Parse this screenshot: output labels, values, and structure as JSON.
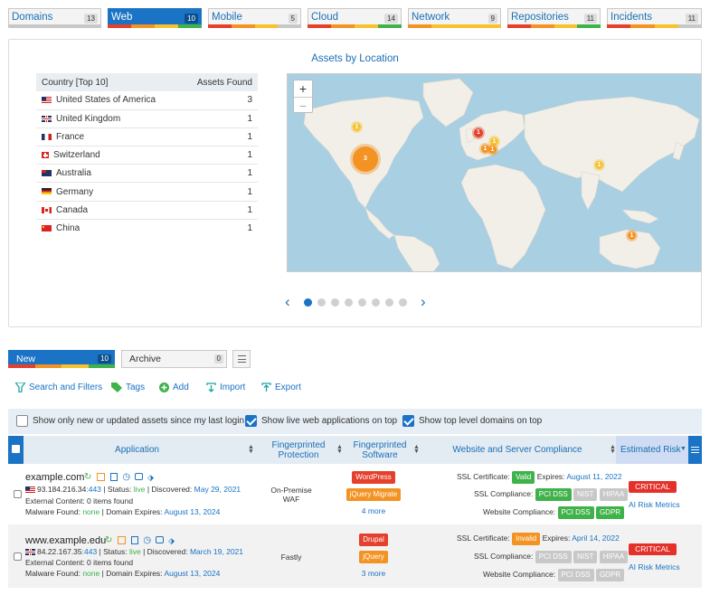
{
  "tabs": [
    {
      "label": "Domains",
      "count": "13",
      "active": false
    },
    {
      "label": "Web",
      "count": "10",
      "active": true
    },
    {
      "label": "Mobile",
      "count": "5",
      "active": false
    },
    {
      "label": "Cloud",
      "count": "14",
      "active": false
    },
    {
      "label": "Network",
      "count": "9",
      "active": false
    },
    {
      "label": "Repositories",
      "count": "11",
      "active": false
    },
    {
      "label": "Incidents",
      "count": "11",
      "active": false
    }
  ],
  "panel": {
    "title": "Assets by Location",
    "country_header": "Country [Top 10]",
    "assets_header": "Assets Found",
    "countries": [
      {
        "name": "United States of America",
        "count": "3",
        "flag": "us"
      },
      {
        "name": "United Kingdom",
        "count": "1",
        "flag": "gb"
      },
      {
        "name": "France",
        "count": "1",
        "flag": "fr"
      },
      {
        "name": "Switzerland",
        "count": "1",
        "flag": "ch"
      },
      {
        "name": "Australia",
        "count": "1",
        "flag": "au"
      },
      {
        "name": "Germany",
        "count": "1",
        "flag": "de"
      },
      {
        "name": "Canada",
        "count": "1",
        "flag": "ca"
      },
      {
        "name": "China",
        "count": "1",
        "flag": "cn"
      }
    ],
    "map": {
      "zoom_in": "+",
      "zoom_out": "−",
      "clusters": [
        "3",
        "1",
        "1",
        "1",
        "1",
        "1",
        "1",
        "1"
      ]
    },
    "pager": {
      "prev": "‹",
      "next": "›",
      "pages": 8,
      "current": 1
    }
  },
  "subtabs": [
    {
      "label": "New",
      "count": "10",
      "active": true
    },
    {
      "label": "Archive",
      "count": "0",
      "active": false
    }
  ],
  "toolbar": {
    "search": "Search and Filters",
    "tags": "Tags",
    "add": "Add",
    "import": "Import",
    "export": "Export",
    "menu_icon": "list-icon"
  },
  "filters": [
    {
      "label": "Show only new or updated assets since my last login",
      "checked": false
    },
    {
      "label": "Show live web applications on top",
      "checked": true
    },
    {
      "label": "Show top level domains on top",
      "checked": true
    }
  ],
  "columns": {
    "application": "Application",
    "protection": "Fingerprinted Protection",
    "software": "Fingerprinted Software",
    "compliance": "Website and Server Compliance",
    "risk": "Estimated Risk"
  },
  "rows": [
    {
      "name": "example.com",
      "ip": "93.184.216.34",
      "port": ":443",
      "status_label": "Status:",
      "status": "live",
      "discovered_label": "Discovered:",
      "discovered": "May 29, 2021",
      "external": "External Content: 0 items found",
      "malware_label": "Malware Found:",
      "malware": "none",
      "expires_label": "Domain Expires:",
      "expires": "August 13, 2024",
      "protection": "On-Premise WAF",
      "software": [
        "WordPress",
        "jQuery Migrate"
      ],
      "software_colors": [
        "#e4402c",
        "#f39323"
      ],
      "more": "4 more",
      "ssl_label": "SSL Certificate:",
      "ssl": "Valid",
      "ssl_color": "#3fb24a",
      "ssl_expires_label": "Expires:",
      "ssl_expires": "August 11, 2022",
      "ssl_compliance_label": "SSL Compliance:",
      "ssl_compliance": [
        "PCI DSS",
        "NIST",
        "HIPAA"
      ],
      "ssl_compliance_colors": [
        "#3fb24a",
        "#c8c8c8",
        "#c8c8c8"
      ],
      "web_compliance_label": "Website Compliance:",
      "web_compliance": [
        "PCI DSS",
        "GDPR"
      ],
      "web_compliance_colors": [
        "#3fb24a",
        "#3fb24a"
      ],
      "risk": "CRITICAL",
      "risk_link": "AI Risk Metrics"
    },
    {
      "name": "www.example.edu",
      "ip": "84.22.167.35",
      "port": ":443",
      "status_label": "Status:",
      "status": "live",
      "discovered_label": "Discovered:",
      "discovered": "March 19, 2021",
      "external": "External Content: 0 items found",
      "malware_label": "Malware Found:",
      "malware": "none",
      "expires_label": "Domain Expires:",
      "expires": "August 13, 2024",
      "protection": "Fastly",
      "software": [
        "Drupal",
        "jQuery"
      ],
      "software_colors": [
        "#e4402c",
        "#f39323"
      ],
      "more": "3 more",
      "ssl_label": "SSL Certificate:",
      "ssl": "Invalid",
      "ssl_color": "#f39323",
      "ssl_expires_label": "Expires:",
      "ssl_expires": "April 14, 2022",
      "ssl_compliance_label": "SSL Compliance:",
      "ssl_compliance": [
        "PCI DSS",
        "NIST",
        "HIPAA"
      ],
      "ssl_compliance_colors": [
        "#c8c8c8",
        "#c8c8c8",
        "#c8c8c8"
      ],
      "web_compliance_label": "Website Compliance:",
      "web_compliance": [
        "PCI DSS",
        "GDPR"
      ],
      "web_compliance_colors": [
        "#c8c8c8",
        "#c8c8c8"
      ],
      "risk": "CRITICAL",
      "risk_link": "AI Risk Metrics"
    }
  ]
}
